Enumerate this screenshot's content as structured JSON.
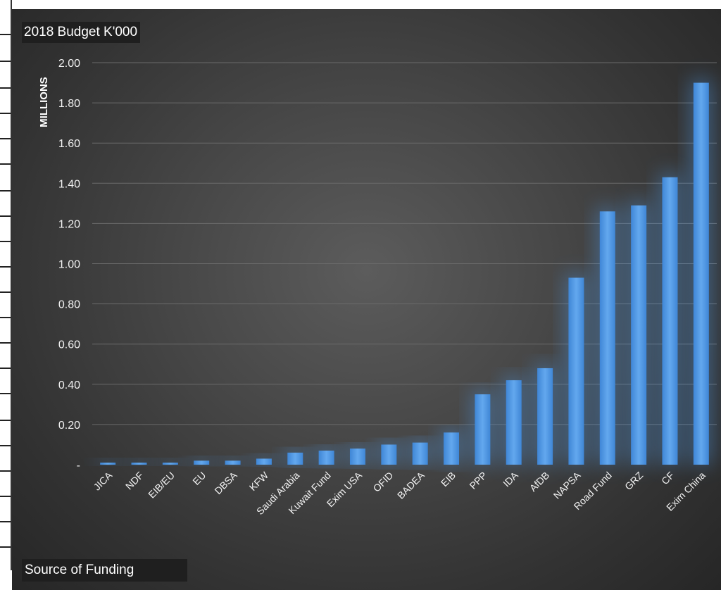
{
  "chart_data": {
    "type": "bar",
    "title": "2018 Budget K'000",
    "xlabel": "Source of Funding",
    "ylabel": "MILLIONS",
    "ylim": [
      0,
      2.0
    ],
    "y_ticks": [
      "-",
      "0.20",
      "0.40",
      "0.60",
      "0.80",
      "1.00",
      "1.20",
      "1.40",
      "1.60",
      "1.80",
      "2.00"
    ],
    "categories": [
      "JICA",
      "NDF",
      "EIB/EU",
      "EU",
      "DBSA",
      "KFW",
      "Saudi Arabia",
      "Kuwait Fund",
      "Exim USA",
      "OFID",
      "BADEA",
      "EIB",
      "PPP",
      "IDA",
      "AfDB",
      "NAPSA",
      "Road Fund",
      "GRZ",
      "CF",
      "Exim China"
    ],
    "values": [
      0.01,
      0.01,
      0.01,
      0.02,
      0.02,
      0.03,
      0.06,
      0.07,
      0.08,
      0.1,
      0.11,
      0.16,
      0.35,
      0.42,
      0.48,
      0.93,
      1.26,
      1.29,
      1.43,
      1.9
    ],
    "bar_color": "#4f95e0",
    "background_color": "#3c3c3c",
    "grid": true,
    "legend": "none"
  }
}
